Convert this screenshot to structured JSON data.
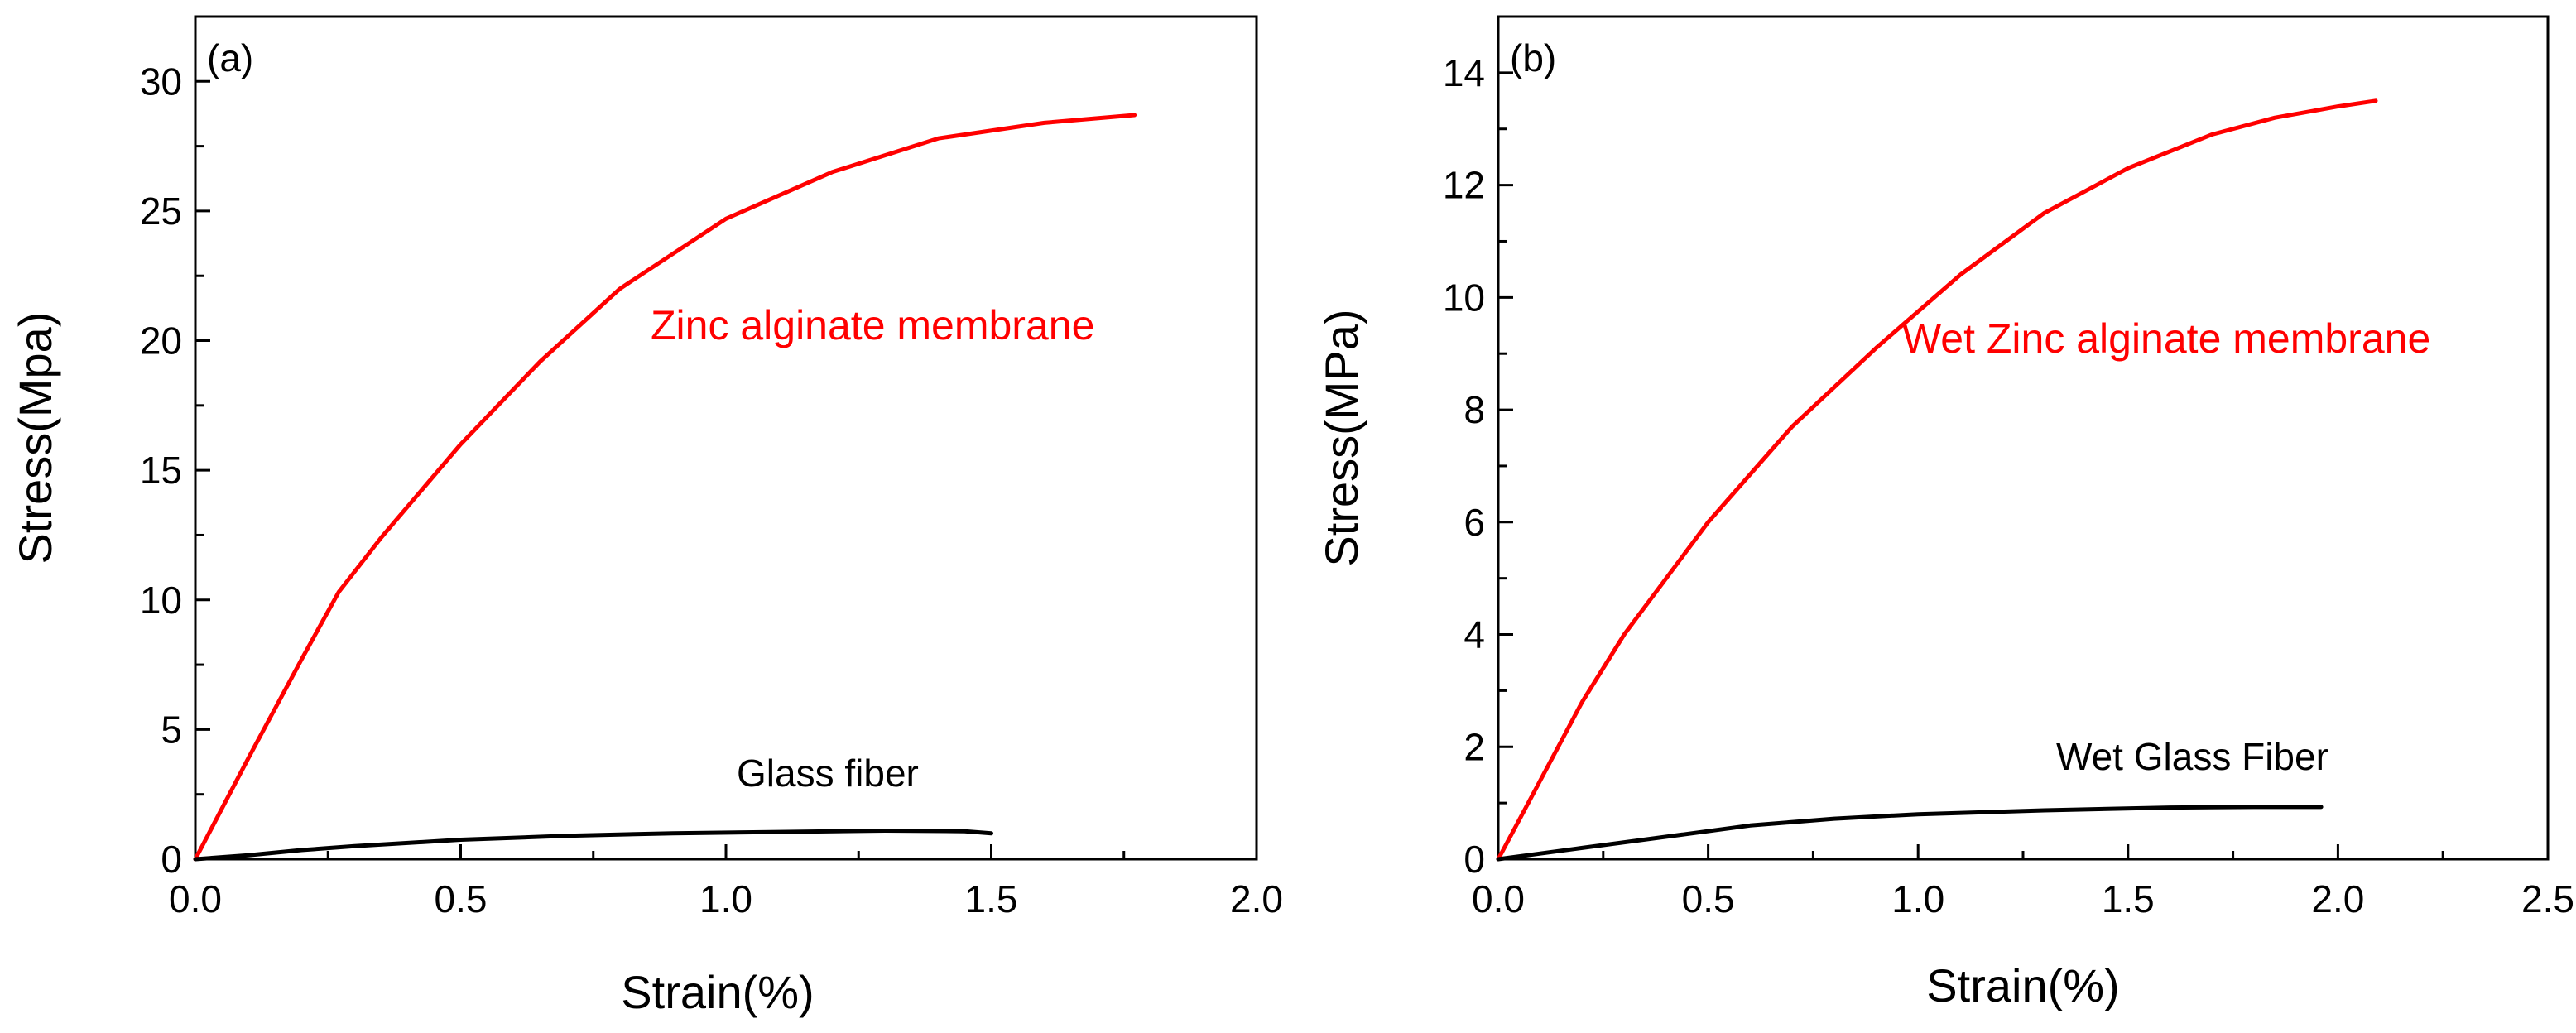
{
  "chart_data": [
    {
      "type": "line",
      "panel_label": "(a)",
      "xlabel": "Strain(%)",
      "ylabel": "Stress(Mpa)",
      "xlim": [
        0.0,
        2.0
      ],
      "ylim": [
        0,
        32.5
      ],
      "xticks": [
        0.0,
        0.5,
        1.0,
        1.5,
        2.0
      ],
      "xtick_labels": [
        "0.0",
        "0.5",
        "1.0",
        "1.5",
        "2.0"
      ],
      "yticks": [
        0,
        5,
        10,
        15,
        20,
        25,
        30
      ],
      "ytick_labels": [
        "0",
        "5",
        "10",
        "15",
        "20",
        "25",
        "30"
      ],
      "grid": false,
      "series": [
        {
          "name": "Zinc alginate membrane",
          "color": "#ff0000",
          "x": [
            0.0,
            0.1,
            0.2,
            0.27,
            0.35,
            0.5,
            0.65,
            0.8,
            1.0,
            1.2,
            1.4,
            1.6,
            1.77
          ],
          "y": [
            0.0,
            3.9,
            7.7,
            10.3,
            12.4,
            16.0,
            19.2,
            22.0,
            24.7,
            26.5,
            27.8,
            28.4,
            28.7
          ]
        },
        {
          "name": "Glass fiber",
          "color": "#000000",
          "x": [
            0.0,
            0.1,
            0.2,
            0.3,
            0.5,
            0.7,
            0.9,
            1.1,
            1.3,
            1.45,
            1.5
          ],
          "y": [
            0.0,
            0.15,
            0.35,
            0.5,
            0.75,
            0.9,
            1.0,
            1.05,
            1.1,
            1.08,
            1.0
          ]
        }
      ],
      "annotations": [
        {
          "text": "Zinc alginate membrane",
          "color": "#ff0000",
          "x": 0.86,
          "y": 20.5
        },
        {
          "text": "Glass fiber",
          "color": "#000000",
          "x": 1.02,
          "y": 3.2
        }
      ]
    },
    {
      "type": "line",
      "panel_label": "(b)",
      "xlabel": "Strain(%)",
      "ylabel": "Stress(MPa)",
      "xlim": [
        0.0,
        2.5
      ],
      "ylim": [
        0,
        15
      ],
      "xticks": [
        0.0,
        0.5,
        1.0,
        1.5,
        2.0,
        2.5
      ],
      "xtick_labels": [
        "0.0",
        "0.5",
        "1.0",
        "1.5",
        "2.0",
        "2.5"
      ],
      "yticks": [
        0,
        2,
        4,
        6,
        8,
        10,
        12,
        14
      ],
      "ytick_labels": [
        "0",
        "2",
        "4",
        "6",
        "8",
        "10",
        "12",
        "14"
      ],
      "grid": false,
      "series": [
        {
          "name": "Wet Zinc alginate membrane",
          "color": "#ff0000",
          "x": [
            0.0,
            0.1,
            0.2,
            0.3,
            0.5,
            0.7,
            0.9,
            1.1,
            1.3,
            1.5,
            1.7,
            1.85,
            2.0,
            2.09
          ],
          "y": [
            0.0,
            1.4,
            2.8,
            4.0,
            6.0,
            7.7,
            9.1,
            10.4,
            11.5,
            12.3,
            12.9,
            13.2,
            13.4,
            13.5
          ]
        },
        {
          "name": "Wet Glass Fiber",
          "color": "#000000",
          "x": [
            0.0,
            0.1,
            0.2,
            0.4,
            0.6,
            0.8,
            1.0,
            1.3,
            1.6,
            1.8,
            1.96
          ],
          "y": [
            0.0,
            0.1,
            0.2,
            0.4,
            0.6,
            0.72,
            0.8,
            0.87,
            0.92,
            0.93,
            0.93
          ]
        }
      ],
      "annotations": [
        {
          "text": "Wet Zinc alginate membrane",
          "color": "#ff0000",
          "x": 0.98,
          "y": 9.4
        },
        {
          "text": "Wet Glass Fiber",
          "color": "#000000",
          "x": 1.35,
          "y": 1.6
        }
      ]
    }
  ]
}
